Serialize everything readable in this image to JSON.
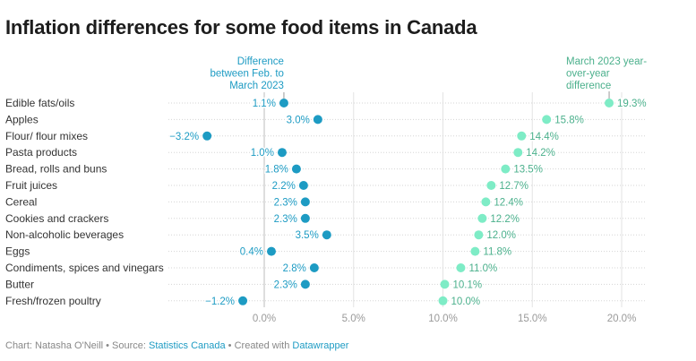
{
  "title": "Inflation differences for some food items in Canada",
  "chart_data": {
    "type": "dot-range",
    "title": "Inflation differences for some food items in Canada",
    "xlabel": "",
    "ylabel": "",
    "xlim": [
      -3.5,
      21
    ],
    "x_ticks": [
      0,
      5,
      10,
      15,
      20
    ],
    "x_tick_labels": [
      "0.0%",
      "5.0%",
      "10.0%",
      "15.0%",
      "20.0%"
    ],
    "grid": true,
    "categories": [
      "Edible fats/oils",
      "Apples",
      "Flour/ flour mixes",
      "Pasta products",
      "Bread, rolls and buns",
      "Fruit juices",
      "Cereal",
      "Cookies and crackers",
      "Non-alcoholic beverages",
      "Eggs",
      "Condiments, spices and vinegars",
      "Butter",
      "Fresh/frozen poultry"
    ],
    "series": [
      {
        "name": "Difference between Feb. to March 2023",
        "color": "#1d9bc3",
        "values": [
          1.1,
          3.0,
          -3.2,
          1.0,
          1.8,
          2.2,
          2.3,
          2.3,
          3.5,
          0.4,
          2.8,
          2.3,
          -1.2
        ],
        "labels": [
          "1.1%",
          "3.0%",
          "−3.2%",
          "1.0%",
          "1.8%",
          "2.2%",
          "2.3%",
          "2.3%",
          "3.5%",
          "0.4%",
          "2.8%",
          "2.3%",
          "−1.2%"
        ]
      },
      {
        "name": "March 2023 year-over-year difference",
        "color": "#7eecc6",
        "label_color": "#4bb08c",
        "values": [
          19.3,
          15.8,
          14.4,
          14.2,
          13.5,
          12.7,
          12.4,
          12.2,
          12.0,
          11.8,
          11.0,
          10.1,
          10.0
        ],
        "labels": [
          "19.3%",
          "15.8%",
          "14.4%",
          "14.2%",
          "13.5%",
          "12.7%",
          "12.4%",
          "12.2%",
          "12.0%",
          "11.8%",
          "11.0%",
          "10.1%",
          "10.0%"
        ]
      }
    ],
    "annotations": [
      {
        "text": [
          "Difference",
          "between Feb. to",
          "March 2023"
        ],
        "series": 0,
        "row": 0
      },
      {
        "text": [
          "March 2023 year-",
          "over-year",
          "difference"
        ],
        "series": 1,
        "row": 0
      }
    ]
  },
  "footer": {
    "prefix": "Chart: Natasha O'Neill • Source: ",
    "source_link": "Statistics Canada",
    "middle": " • Created with ",
    "tool_link": "Datawrapper"
  }
}
